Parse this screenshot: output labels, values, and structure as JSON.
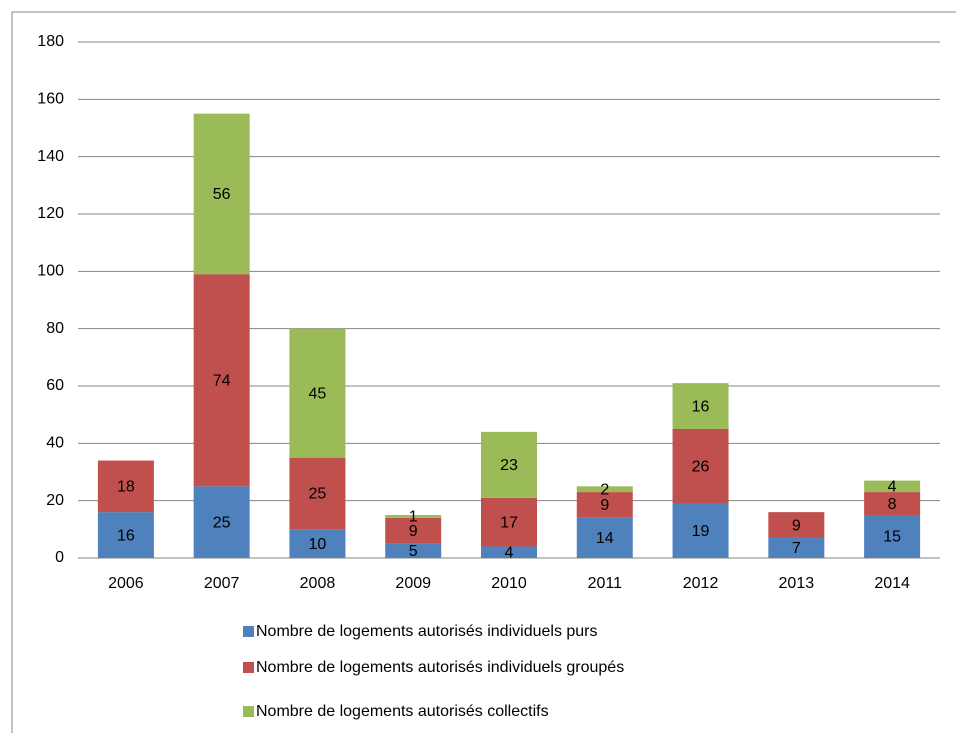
{
  "chart_data": {
    "type": "stacked_bar",
    "categories": [
      "2006",
      "2007",
      "2008",
      "2009",
      "2010",
      "2011",
      "2012",
      "2013",
      "2014"
    ],
    "series": [
      {
        "name": "Nombre de logements autorisés individuels purs",
        "color": "#4f81bd",
        "values": [
          16,
          25,
          10,
          5,
          4,
          14,
          19,
          7,
          15
        ]
      },
      {
        "name": "Nombre de logements autorisés individuels groupés",
        "color": "#c0504d",
        "values": [
          18,
          74,
          25,
          9,
          17,
          9,
          26,
          9,
          8
        ]
      },
      {
        "name": "Nombre de logements autorisés collectifs",
        "color": "#9bbb59",
        "values": [
          null,
          56,
          45,
          1,
          23,
          2,
          16,
          null,
          4
        ]
      }
    ],
    "ylim": [
      0,
      180
    ],
    "yticks": [
      0,
      20,
      40,
      60,
      80,
      100,
      120,
      140,
      160,
      180
    ],
    "grid": true,
    "legend": "bottom"
  }
}
